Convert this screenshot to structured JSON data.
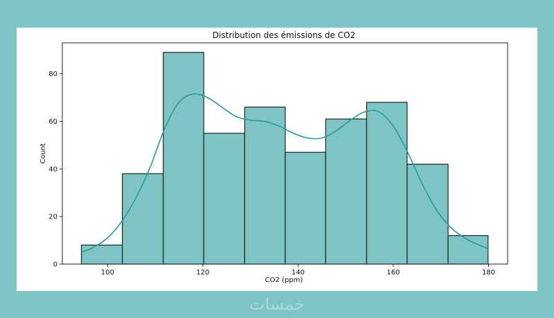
{
  "chart_data": {
    "type": "bar",
    "title": "Distribution des émissions de CO2",
    "xlabel": "CO2 (ppm)",
    "ylabel": "Count",
    "xlim": [
      90.5,
      184
    ],
    "ylim": [
      0,
      93
    ],
    "x_ticks": [
      100,
      120,
      140,
      160,
      180
    ],
    "y_ticks": [
      0,
      20,
      40,
      60,
      80
    ],
    "bins": [
      {
        "start": 94.5,
        "end": 103.1,
        "count": 8
      },
      {
        "start": 103.1,
        "end": 111.7,
        "count": 38
      },
      {
        "start": 111.7,
        "end": 120.2,
        "count": 89
      },
      {
        "start": 120.2,
        "end": 128.8,
        "count": 55
      },
      {
        "start": 128.8,
        "end": 137.3,
        "count": 66
      },
      {
        "start": 137.3,
        "end": 145.8,
        "count": 47
      },
      {
        "start": 145.8,
        "end": 154.4,
        "count": 61
      },
      {
        "start": 154.4,
        "end": 162.9,
        "count": 68
      },
      {
        "start": 162.9,
        "end": 171.5,
        "count": 42
      },
      {
        "start": 171.5,
        "end": 179.9,
        "count": 12
      }
    ],
    "kde_curve": {
      "x": [
        94.5,
        97,
        100,
        103,
        106,
        109,
        112,
        115,
        118,
        121,
        124,
        127,
        130,
        133,
        136,
        139,
        142,
        145,
        148,
        151,
        154,
        157,
        160,
        163,
        166,
        169,
        172,
        175,
        178,
        179.9
      ],
      "y": [
        5,
        7,
        11,
        18,
        28,
        41,
        57,
        68,
        71.5,
        70,
        66,
        62,
        60.5,
        60,
        58,
        55,
        53,
        53,
        56,
        60.5,
        64,
        64,
        58,
        47,
        34,
        23,
        15.5,
        11,
        8,
        6.5
      ]
    },
    "bar_fill": "#7fc4c4",
    "bar_stroke": "#222222",
    "curve_color": "#27999b",
    "grid": false,
    "legend": "none"
  },
  "watermark": {
    "text": "خمسات"
  }
}
